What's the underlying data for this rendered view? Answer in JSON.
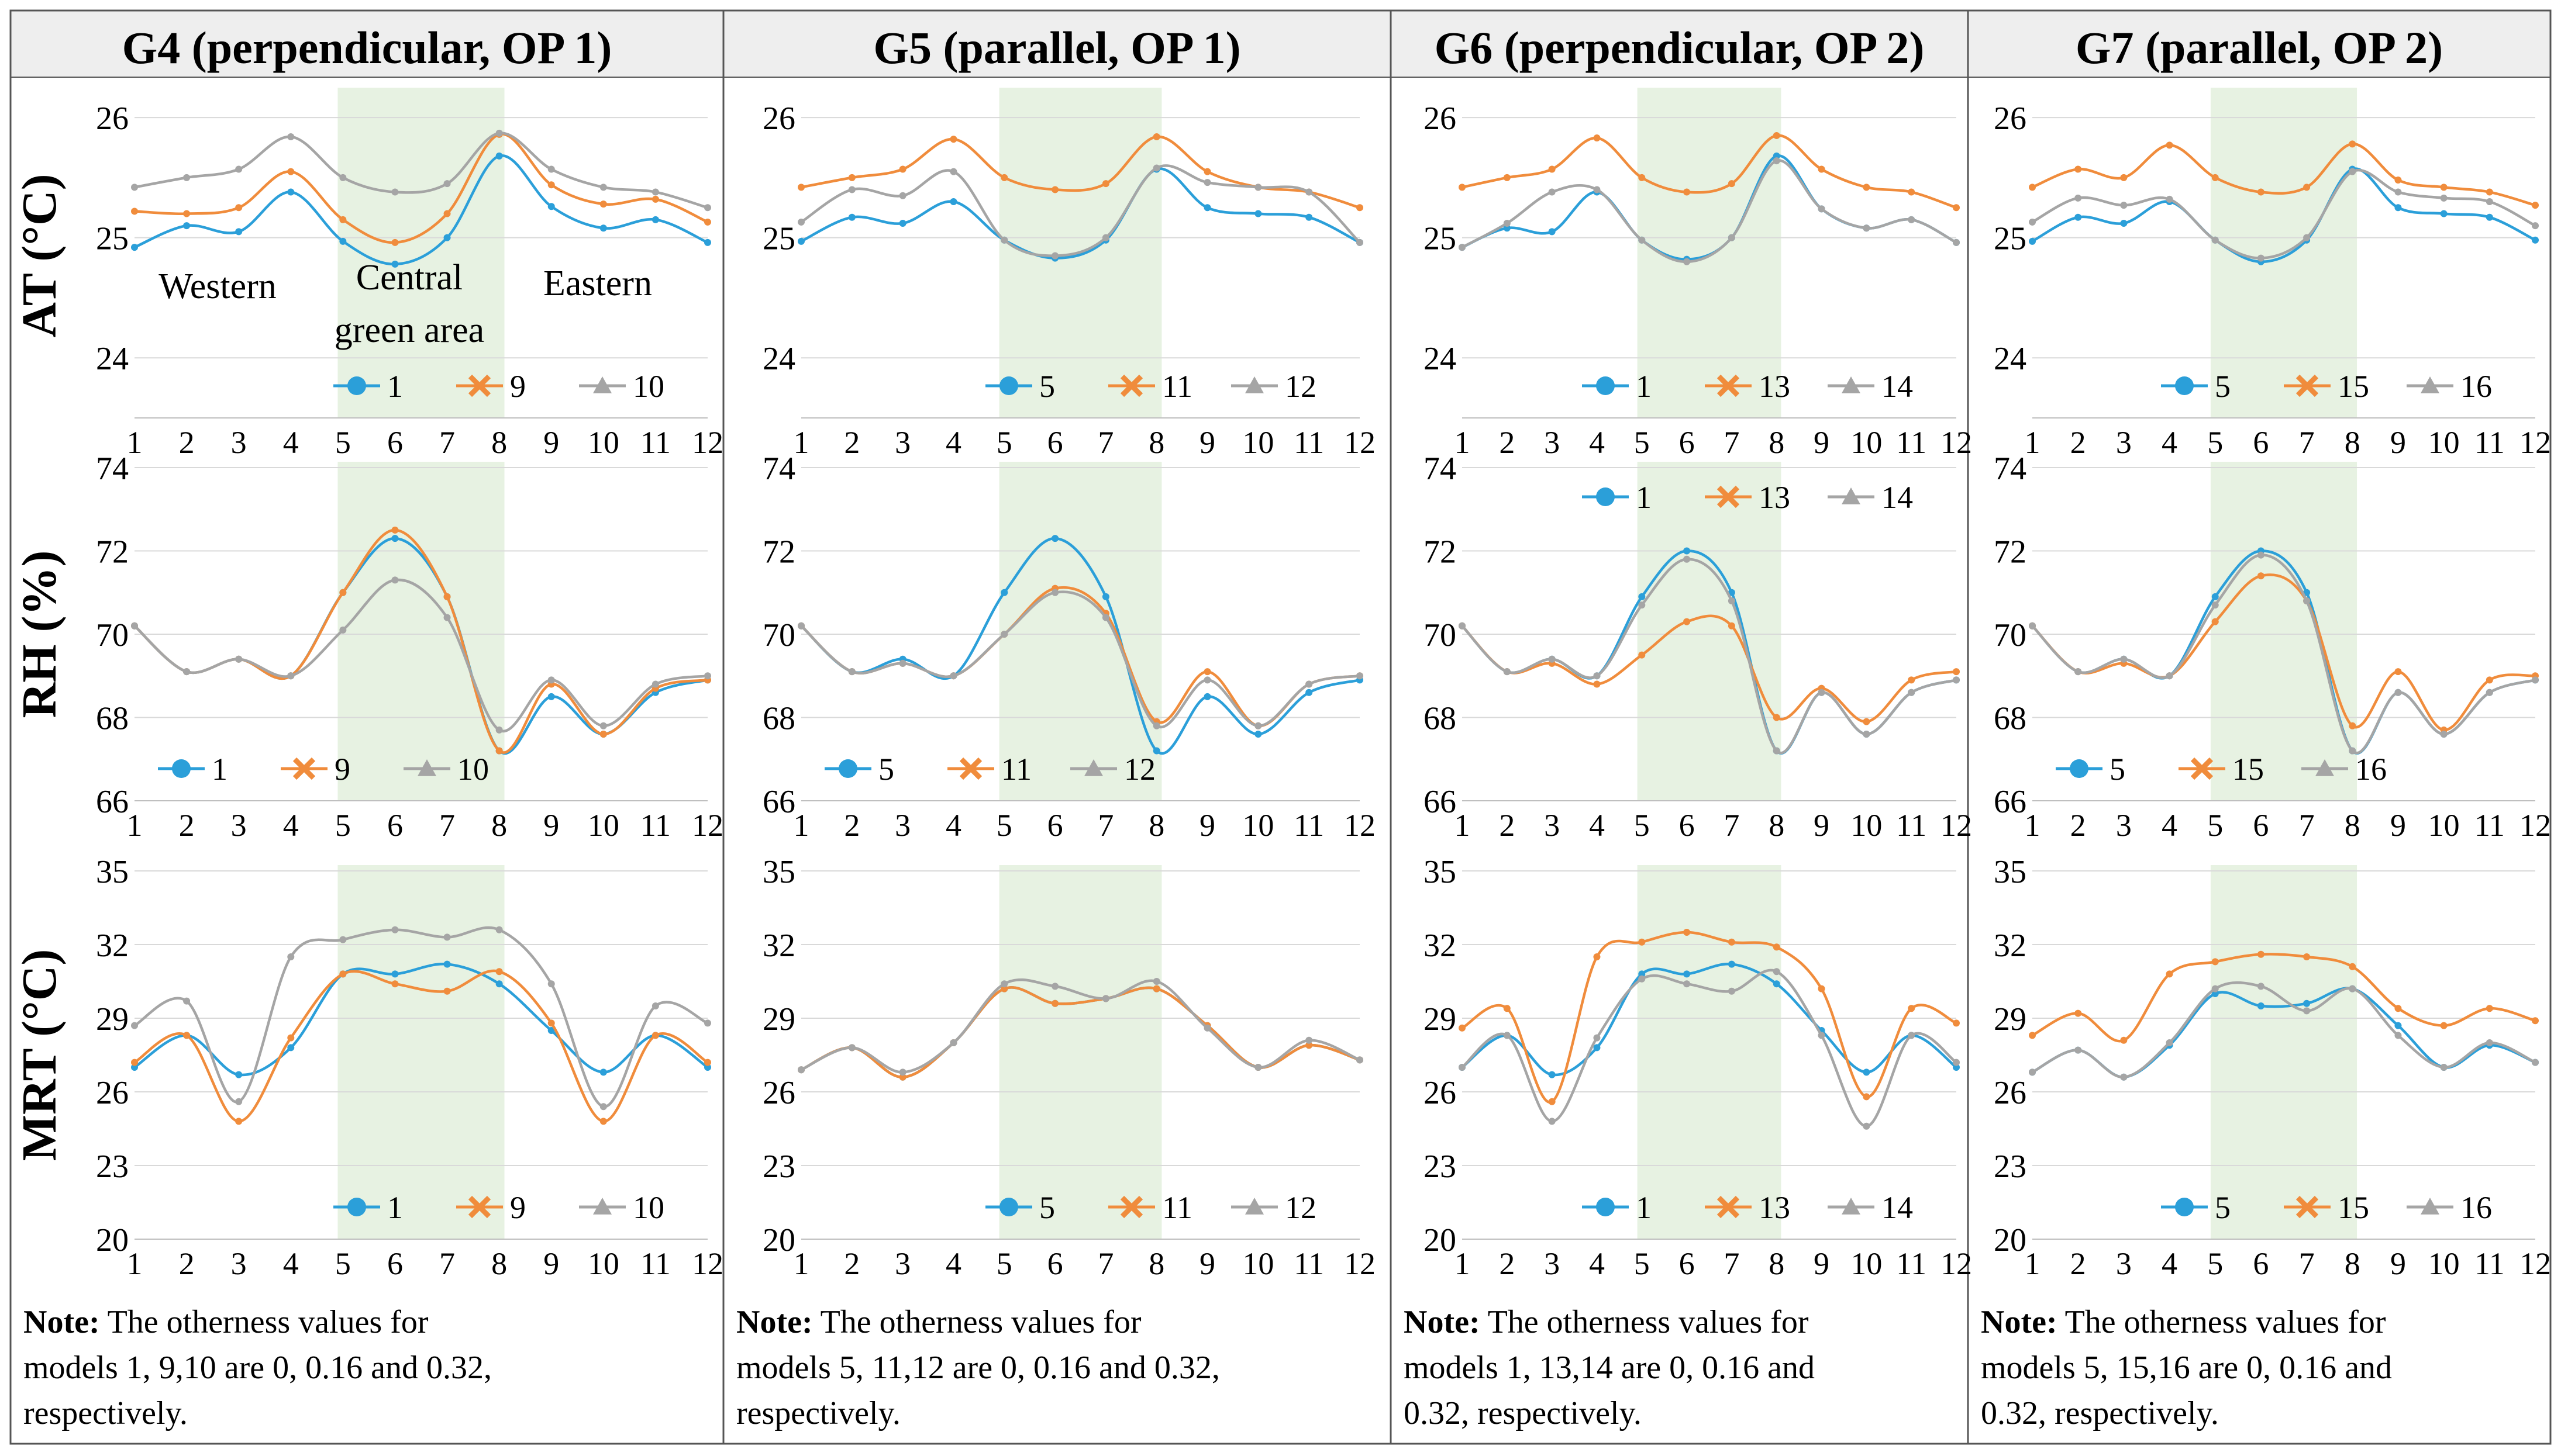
{
  "colors": {
    "model_a": "#2b9fd9",
    "model_b": "#f08c3c",
    "model_c": "#a5a5a5",
    "green_band": "#e7f2e2",
    "grid": "#d9d9d9",
    "border": "#555555",
    "header_bg": "#eeeeee"
  },
  "row_labels": [
    "AT (°C)",
    "RH (%)",
    "MRT (°C)"
  ],
  "region_labels": {
    "western": "Western",
    "central_line1": "Central",
    "central_line2": "green area",
    "eastern": "Eastern"
  },
  "groups": [
    {
      "title": "G4 (perpendicular, OP 1)",
      "note_bold": "Note:",
      "note_lines": [
        " The otherness values for",
        "models 1, 9,10 are 0, 0.16 and 0.32,",
        "respectively."
      ]
    },
    {
      "title": "G5 (parallel, OP 1)",
      "note_bold": "Note:",
      "note_lines": [
        " The otherness values for",
        "models 5, 11,12 are 0, 0.16 and 0.32,",
        "respectively."
      ]
    },
    {
      "title": "G6 (perpendicular, OP 2)",
      "note_bold": "Note:",
      "note_lines": [
        " The otherness values for",
        "models 1, 13,14 are 0, 0.16 and",
        "0.32, respectively."
      ]
    },
    {
      "title": "G7 (parallel, OP 2)",
      "note_bold": "Note:",
      "note_lines": [
        " The otherness values for",
        "models 5, 15,16 are 0, 0.16 and",
        "0.32, respectively."
      ]
    }
  ],
  "chart_data": [
    {
      "group": "G4",
      "metric": "AT",
      "type": "line",
      "ylabel": "AT (°C)",
      "ylim": [
        23.5,
        26.2
      ],
      "yticks": [
        24,
        25,
        26
      ],
      "categories": [
        "1",
        "2",
        "3",
        "4",
        "5",
        "6",
        "7",
        "8",
        "9",
        "10",
        "11",
        "12"
      ],
      "green_band": [
        "5",
        "8"
      ],
      "series": [
        {
          "name": "1",
          "values": [
            24.92,
            25.1,
            25.05,
            25.38,
            24.97,
            24.78,
            25.0,
            25.68,
            25.26,
            25.08,
            25.15,
            24.96
          ]
        },
        {
          "name": "9",
          "values": [
            25.22,
            25.2,
            25.25,
            25.55,
            25.15,
            24.96,
            25.2,
            25.86,
            25.44,
            25.28,
            25.32,
            25.13
          ]
        },
        {
          "name": "10",
          "values": [
            25.42,
            25.5,
            25.57,
            25.84,
            25.5,
            25.38,
            25.45,
            25.87,
            25.57,
            25.42,
            25.38,
            25.25
          ]
        }
      ]
    },
    {
      "group": "G5",
      "metric": "AT",
      "type": "line",
      "ylabel": "AT (°C)",
      "ylim": [
        23.5,
        26.2
      ],
      "yticks": [
        24,
        25,
        26
      ],
      "categories": [
        "1",
        "2",
        "3",
        "4",
        "5",
        "6",
        "7",
        "8",
        "9",
        "10",
        "11",
        "12"
      ],
      "green_band": [
        "5",
        "8"
      ],
      "series": [
        {
          "name": "5",
          "values": [
            24.97,
            25.17,
            25.12,
            25.3,
            24.98,
            24.83,
            24.98,
            25.57,
            25.25,
            25.2,
            25.17,
            24.96
          ]
        },
        {
          "name": "11",
          "values": [
            25.42,
            25.5,
            25.57,
            25.82,
            25.5,
            25.4,
            25.45,
            25.84,
            25.55,
            25.42,
            25.38,
            25.25
          ]
        },
        {
          "name": "12",
          "values": [
            25.13,
            25.4,
            25.35,
            25.55,
            24.98,
            24.85,
            25.0,
            25.58,
            25.46,
            25.42,
            25.38,
            24.96
          ]
        }
      ]
    },
    {
      "group": "G6",
      "metric": "AT",
      "type": "line",
      "ylabel": "AT (°C)",
      "ylim": [
        23.5,
        26.2
      ],
      "yticks": [
        24,
        25,
        26
      ],
      "categories": [
        "1",
        "2",
        "3",
        "4",
        "5",
        "6",
        "7",
        "8",
        "9",
        "10",
        "11",
        "12"
      ],
      "green_band": [
        "5",
        "8"
      ],
      "series": [
        {
          "name": "1",
          "values": [
            24.92,
            25.08,
            25.05,
            25.38,
            24.98,
            24.82,
            25.0,
            25.68,
            25.24,
            25.08,
            25.15,
            24.96
          ]
        },
        {
          "name": "13",
          "values": [
            25.42,
            25.5,
            25.57,
            25.83,
            25.5,
            25.38,
            25.45,
            25.85,
            25.57,
            25.42,
            25.38,
            25.25
          ]
        },
        {
          "name": "14",
          "values": [
            24.92,
            25.12,
            25.38,
            25.4,
            24.98,
            24.8,
            25.0,
            25.64,
            25.24,
            25.08,
            25.15,
            24.96
          ]
        }
      ]
    },
    {
      "group": "G7",
      "metric": "AT",
      "type": "line",
      "ylabel": "AT (°C)",
      "ylim": [
        23.5,
        26.2
      ],
      "yticks": [
        24,
        25,
        26
      ],
      "categories": [
        "1",
        "2",
        "3",
        "4",
        "5",
        "6",
        "7",
        "8",
        "9",
        "10",
        "11",
        "12"
      ],
      "green_band": [
        "5",
        "8"
      ],
      "series": [
        {
          "name": "5",
          "values": [
            24.97,
            25.17,
            25.12,
            25.3,
            24.98,
            24.8,
            24.98,
            25.57,
            25.25,
            25.2,
            25.17,
            24.98
          ]
        },
        {
          "name": "15",
          "values": [
            25.42,
            25.57,
            25.5,
            25.77,
            25.5,
            25.38,
            25.42,
            25.78,
            25.48,
            25.42,
            25.38,
            25.27
          ]
        },
        {
          "name": "16",
          "values": [
            25.13,
            25.33,
            25.27,
            25.32,
            24.98,
            24.83,
            25.0,
            25.55,
            25.38,
            25.33,
            25.3,
            25.1
          ]
        }
      ]
    },
    {
      "group": "G4",
      "metric": "RH",
      "type": "line",
      "ylabel": "RH (%)",
      "ylim": [
        66,
        74
      ],
      "yticks": [
        66,
        68,
        70,
        72,
        74
      ],
      "categories": [
        "1",
        "2",
        "3",
        "4",
        "5",
        "6",
        "7",
        "8",
        "9",
        "10",
        "11",
        "12"
      ],
      "green_band": [
        "5",
        "8"
      ],
      "series": [
        {
          "name": "1",
          "values": [
            70.2,
            69.1,
            69.4,
            69.0,
            71.0,
            72.3,
            70.9,
            67.2,
            68.5,
            67.6,
            68.6,
            68.9
          ]
        },
        {
          "name": "9",
          "values": [
            70.2,
            69.1,
            69.4,
            69.0,
            71.0,
            72.5,
            70.9,
            67.2,
            68.8,
            67.6,
            68.7,
            68.9
          ]
        },
        {
          "name": "10",
          "values": [
            70.2,
            69.1,
            69.4,
            69.0,
            70.1,
            71.3,
            70.4,
            67.7,
            68.9,
            67.8,
            68.8,
            69.0
          ]
        }
      ]
    },
    {
      "group": "G5",
      "metric": "RH",
      "type": "line",
      "ylabel": "RH (%)",
      "ylim": [
        66,
        74
      ],
      "yticks": [
        66,
        68,
        70,
        72,
        74
      ],
      "categories": [
        "1",
        "2",
        "3",
        "4",
        "5",
        "6",
        "7",
        "8",
        "9",
        "10",
        "11",
        "12"
      ],
      "green_band": [
        "5",
        "8"
      ],
      "series": [
        {
          "name": "5",
          "values": [
            70.2,
            69.1,
            69.4,
            69.0,
            71.0,
            72.3,
            70.9,
            67.2,
            68.5,
            67.6,
            68.6,
            68.9
          ]
        },
        {
          "name": "11",
          "values": [
            70.2,
            69.1,
            69.3,
            69.0,
            70.0,
            71.1,
            70.5,
            67.9,
            69.1,
            67.8,
            68.8,
            69.0
          ]
        },
        {
          "name": "12",
          "values": [
            70.2,
            69.1,
            69.3,
            69.0,
            70.0,
            71.0,
            70.4,
            67.8,
            68.9,
            67.8,
            68.8,
            69.0
          ]
        }
      ]
    },
    {
      "group": "G6",
      "metric": "RH",
      "type": "line",
      "ylabel": "RH (%)",
      "ylim": [
        66,
        74
      ],
      "yticks": [
        66,
        68,
        70,
        72,
        74
      ],
      "categories": [
        "1",
        "2",
        "3",
        "4",
        "5",
        "6",
        "7",
        "8",
        "9",
        "10",
        "11",
        "12"
      ],
      "green_band": [
        "5",
        "8"
      ],
      "series": [
        {
          "name": "1",
          "values": [
            70.2,
            69.1,
            69.4,
            69.0,
            70.9,
            72.0,
            71.0,
            67.2,
            68.6,
            67.6,
            68.6,
            68.9
          ]
        },
        {
          "name": "13",
          "values": [
            70.2,
            69.1,
            69.3,
            68.8,
            69.5,
            70.3,
            70.2,
            68.0,
            68.7,
            67.9,
            68.9,
            69.1
          ]
        },
        {
          "name": "14",
          "values": [
            70.2,
            69.1,
            69.4,
            69.0,
            70.7,
            71.8,
            70.8,
            67.2,
            68.6,
            67.6,
            68.6,
            68.9
          ]
        }
      ]
    },
    {
      "group": "G7",
      "metric": "RH",
      "type": "line",
      "ylabel": "RH (%)",
      "ylim": [
        66,
        74
      ],
      "yticks": [
        66,
        68,
        70,
        72,
        74
      ],
      "categories": [
        "1",
        "2",
        "3",
        "4",
        "5",
        "6",
        "7",
        "8",
        "9",
        "10",
        "11",
        "12"
      ],
      "green_band": [
        "5",
        "8"
      ],
      "series": [
        {
          "name": "5",
          "values": [
            70.2,
            69.1,
            69.4,
            69.0,
            70.9,
            72.0,
            71.0,
            67.2,
            68.6,
            67.6,
            68.6,
            68.9
          ]
        },
        {
          "name": "15",
          "values": [
            70.2,
            69.1,
            69.3,
            69.0,
            70.3,
            71.4,
            70.8,
            67.8,
            69.1,
            67.7,
            68.9,
            69.0
          ]
        },
        {
          "name": "16",
          "values": [
            70.2,
            69.1,
            69.4,
            69.0,
            70.7,
            71.9,
            70.8,
            67.2,
            68.6,
            67.6,
            68.6,
            68.9
          ]
        }
      ]
    },
    {
      "group": "G4",
      "metric": "MRT",
      "type": "line",
      "ylabel": "MRT (°C)",
      "ylim": [
        20,
        35
      ],
      "yticks": [
        20,
        23,
        26,
        29,
        32,
        35
      ],
      "categories": [
        "1",
        "2",
        "3",
        "4",
        "5",
        "6",
        "7",
        "8",
        "9",
        "10",
        "11",
        "12"
      ],
      "green_band": [
        "5",
        "8"
      ],
      "series": [
        {
          "name": "1",
          "values": [
            27.0,
            28.3,
            26.7,
            27.8,
            30.8,
            30.8,
            31.2,
            30.4,
            28.5,
            26.8,
            28.3,
            27.0
          ]
        },
        {
          "name": "9",
          "values": [
            27.2,
            28.3,
            24.8,
            28.2,
            30.8,
            30.4,
            30.1,
            30.9,
            28.8,
            24.8,
            28.3,
            27.2
          ]
        },
        {
          "name": "10",
          "values": [
            28.7,
            29.7,
            25.6,
            31.5,
            32.2,
            32.6,
            32.3,
            32.6,
            30.4,
            25.4,
            29.5,
            28.8
          ]
        }
      ]
    },
    {
      "group": "G5",
      "metric": "MRT",
      "type": "line",
      "ylabel": "MRT (°C)",
      "ylim": [
        20,
        35
      ],
      "yticks": [
        20,
        23,
        26,
        29,
        32,
        35
      ],
      "categories": [
        "1",
        "2",
        "3",
        "4",
        "5",
        "6",
        "7",
        "8",
        "9",
        "10",
        "11",
        "12"
      ],
      "green_band": [
        "5",
        "8"
      ],
      "series": [
        {
          "name": "5",
          "values": [
            26.9,
            27.8,
            26.6,
            28.0,
            30.2,
            29.6,
            29.8,
            30.2,
            28.7,
            27.0,
            27.9,
            27.3
          ]
        },
        {
          "name": "11",
          "values": [
            26.9,
            27.8,
            26.6,
            28.0,
            30.2,
            29.6,
            29.8,
            30.2,
            28.7,
            27.0,
            27.9,
            27.3
          ]
        },
        {
          "name": "12",
          "values": [
            26.9,
            27.8,
            26.8,
            28.0,
            30.4,
            30.3,
            29.8,
            30.5,
            28.6,
            27.0,
            28.1,
            27.3
          ]
        }
      ]
    },
    {
      "group": "G6",
      "metric": "MRT",
      "type": "line",
      "ylabel": "MRT (°C)",
      "ylim": [
        20,
        35
      ],
      "yticks": [
        20,
        23,
        26,
        29,
        32,
        35
      ],
      "categories": [
        "1",
        "2",
        "3",
        "4",
        "5",
        "6",
        "7",
        "8",
        "9",
        "10",
        "11",
        "12"
      ],
      "green_band": [
        "5",
        "8"
      ],
      "series": [
        {
          "name": "1",
          "values": [
            27.0,
            28.3,
            26.7,
            27.8,
            30.8,
            30.8,
            31.2,
            30.4,
            28.5,
            26.8,
            28.3,
            27.0
          ]
        },
        {
          "name": "13",
          "values": [
            28.6,
            29.4,
            25.6,
            31.5,
            32.1,
            32.5,
            32.1,
            31.9,
            30.2,
            25.8,
            29.4,
            28.8
          ]
        },
        {
          "name": "14",
          "values": [
            27.0,
            28.3,
            24.8,
            28.2,
            30.6,
            30.4,
            30.1,
            30.9,
            28.3,
            24.6,
            28.3,
            27.2
          ]
        }
      ]
    },
    {
      "group": "G7",
      "metric": "MRT",
      "type": "line",
      "ylabel": "MRT (°C)",
      "ylim": [
        20,
        35
      ],
      "yticks": [
        20,
        23,
        26,
        29,
        32,
        35
      ],
      "categories": [
        "1",
        "2",
        "3",
        "4",
        "5",
        "6",
        "7",
        "8",
        "9",
        "10",
        "11",
        "12"
      ],
      "green_band": [
        "5",
        "8"
      ],
      "series": [
        {
          "name": "5",
          "values": [
            26.8,
            27.7,
            26.6,
            27.9,
            30.0,
            29.5,
            29.6,
            30.2,
            28.7,
            27.0,
            27.9,
            27.2
          ]
        },
        {
          "name": "15",
          "values": [
            28.3,
            29.2,
            28.1,
            30.8,
            31.3,
            31.6,
            31.5,
            31.1,
            29.4,
            28.7,
            29.4,
            28.9
          ]
        },
        {
          "name": "16",
          "values": [
            26.8,
            27.7,
            26.6,
            28.0,
            30.2,
            30.3,
            29.3,
            30.2,
            28.3,
            27.0,
            28.0,
            27.2
          ]
        }
      ]
    }
  ]
}
